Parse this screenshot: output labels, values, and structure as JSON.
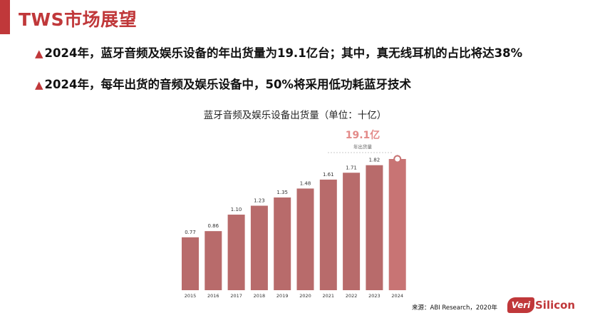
{
  "slide": {
    "title": "TWS市场展望",
    "bullets": [
      {
        "mark": "▲",
        "text": "2024年，蓝牙音频及娱乐设备的年出货量为19.1亿台；其中，真无线耳机的占比将达38%"
      },
      {
        "mark": "▲",
        "text": "2024年，每年出货的音频及娱乐设备中，50%将采用低功耗蓝牙技术"
      }
    ],
    "source": "来源：ABI Research，2020年",
    "logo": {
      "emblem": "Veri",
      "name": "Silicon"
    }
  },
  "colors": {
    "accent": "#c0383a",
    "bar": "#b86b6b",
    "bar_highlight": "#c87474",
    "callout": "#e38a88"
  },
  "chart_data": {
    "type": "bar",
    "title": "蓝牙音频及娱乐设备出货量（单位：十亿）",
    "categories": [
      "2015",
      "2016",
      "2017",
      "2018",
      "2019",
      "2020",
      "2021",
      "2022",
      "2023",
      "2024"
    ],
    "values": [
      0.77,
      0.86,
      1.1,
      1.23,
      1.35,
      1.48,
      1.61,
      1.71,
      1.82,
      1.91
    ],
    "value_labels": [
      "0.77",
      "0.86",
      "1.10",
      "1.23",
      "1.35",
      "1.48",
      "1.61",
      "1.71",
      "1.82",
      ""
    ],
    "ylim": [
      0,
      1.91
    ],
    "grid": false,
    "legend": "none",
    "callout": {
      "category": "2024",
      "value": "19.1亿",
      "label": "年出货量"
    }
  }
}
